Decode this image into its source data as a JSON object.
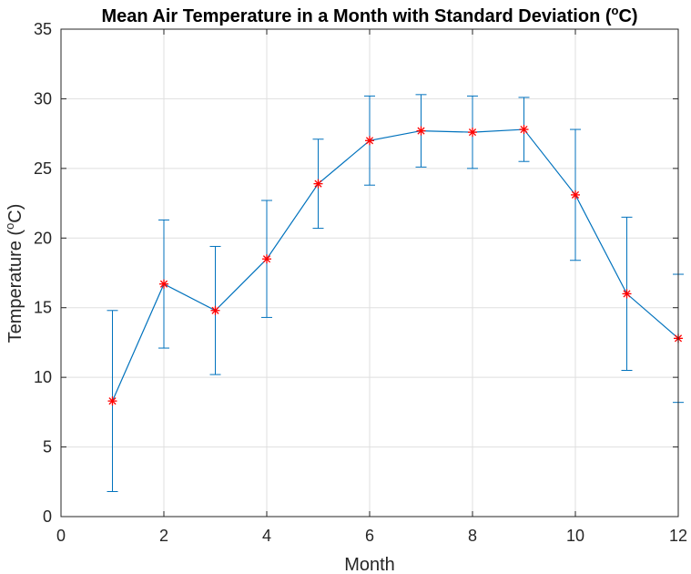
{
  "chart_data": {
    "type": "line",
    "title": {
      "before": "Mean Air Temperature in a Month with Standard Deviation (",
      "sup": "o",
      "after": "C)"
    },
    "xlabel": "Month",
    "ylabel": {
      "before": "Temperature (",
      "sup": "o",
      "after": "C)"
    },
    "xlim": [
      0,
      12
    ],
    "ylim": [
      0,
      35
    ],
    "xticks": [
      0,
      2,
      4,
      6,
      8,
      10,
      12
    ],
    "yticks": [
      0,
      5,
      10,
      15,
      20,
      25,
      30,
      35
    ],
    "grid": true,
    "series": [
      {
        "line_color": "#0072BD",
        "marker_color": "#FF0000",
        "marker": "asterisk",
        "x": [
          1,
          2,
          3,
          4,
          5,
          6,
          7,
          8,
          9,
          10,
          11,
          12
        ],
        "y": [
          8.3,
          16.7,
          14.8,
          18.5,
          23.9,
          27.0,
          27.7,
          27.6,
          27.8,
          23.1,
          16.0,
          12.8
        ],
        "error": [
          6.5,
          4.6,
          4.6,
          4.2,
          3.2,
          3.2,
          2.6,
          2.6,
          2.3,
          4.7,
          5.5,
          4.6
        ]
      }
    ]
  }
}
